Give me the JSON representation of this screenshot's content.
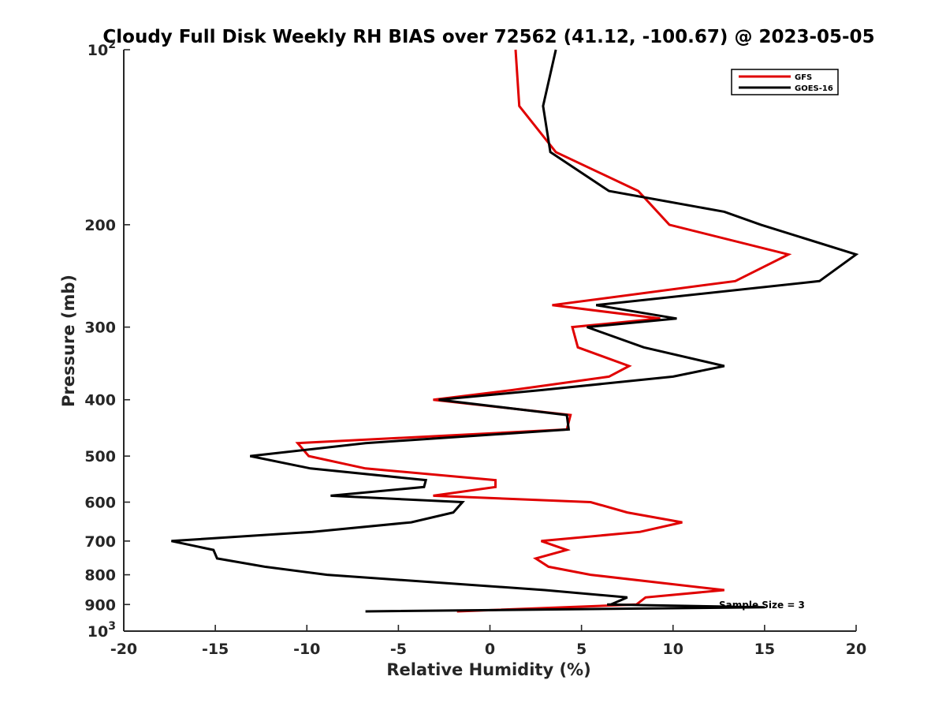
{
  "chart_data": {
    "type": "line",
    "title": "Cloudy Full Disk Weekly RH BIAS over 72562 (41.12, -100.67) @ 2023-05-05",
    "xlabel": "Relative Humidity (%)",
    "ylabel": "Pressure (mb)",
    "xlim": [
      -20,
      20
    ],
    "ylim": [
      100,
      1000
    ],
    "y_scale": "log",
    "y_reversed": true,
    "grid": false,
    "legend_position": "top-right",
    "x_ticks": [
      "-20",
      "-15",
      "-10",
      "-5",
      "0",
      "5",
      "10",
      "15",
      "20"
    ],
    "y_ticks": [
      {
        "value": 100,
        "base": "10",
        "exp": "2"
      },
      {
        "value": 200,
        "label": "200"
      },
      {
        "value": 300,
        "label": "300"
      },
      {
        "value": 400,
        "label": "400"
      },
      {
        "value": 500,
        "label": "500"
      },
      {
        "value": 600,
        "label": "600"
      },
      {
        "value": 700,
        "label": "700"
      },
      {
        "value": 800,
        "label": "800"
      },
      {
        "value": 900,
        "label": "900"
      },
      {
        "value": 1000,
        "base": "10",
        "exp": "3"
      }
    ],
    "series": [
      {
        "name": "GFS",
        "color": "#e00000",
        "points": [
          [
            1.4,
            100
          ],
          [
            1.6,
            125
          ],
          [
            3.6,
            150
          ],
          [
            8.1,
            175
          ],
          [
            9.8,
            200
          ],
          [
            16.3,
            225
          ],
          [
            13.4,
            250
          ],
          [
            3.4,
            275
          ],
          [
            9.3,
            290
          ],
          [
            4.5,
            300
          ],
          [
            4.8,
            325
          ],
          [
            7.6,
            350
          ],
          [
            6.5,
            365
          ],
          [
            1.2,
            385
          ],
          [
            -3.1,
            400
          ],
          [
            4.4,
            425
          ],
          [
            4.2,
            450
          ],
          [
            -10.5,
            475
          ],
          [
            -9.9,
            500
          ],
          [
            -6.8,
            525
          ],
          [
            0.3,
            550
          ],
          [
            0.3,
            565
          ],
          [
            -3.1,
            585
          ],
          [
            5.5,
            600
          ],
          [
            7.5,
            625
          ],
          [
            10.5,
            650
          ],
          [
            8.2,
            675
          ],
          [
            2.8,
            700
          ],
          [
            4.2,
            725
          ],
          [
            2.5,
            750
          ],
          [
            3.2,
            775
          ],
          [
            5.5,
            800
          ],
          [
            12.8,
            850
          ],
          [
            8.5,
            875
          ],
          [
            8.0,
            900
          ],
          [
            -1.8,
            925
          ]
        ]
      },
      {
        "name": "GOES-16",
        "color": "#000000",
        "points": [
          [
            3.6,
            100
          ],
          [
            2.9,
            125
          ],
          [
            3.3,
            150
          ],
          [
            6.5,
            175
          ],
          [
            12.8,
            190
          ],
          [
            14.8,
            200
          ],
          [
            20.0,
            225
          ],
          [
            18.0,
            250
          ],
          [
            5.8,
            275
          ],
          [
            10.2,
            290
          ],
          [
            5.3,
            300
          ],
          [
            8.4,
            325
          ],
          [
            12.8,
            350
          ],
          [
            10.0,
            365
          ],
          [
            2.8,
            385
          ],
          [
            -2.8,
            400
          ],
          [
            4.2,
            425
          ],
          [
            4.3,
            450
          ],
          [
            -6.8,
            475
          ],
          [
            -13.1,
            500
          ],
          [
            -9.8,
            525
          ],
          [
            -3.5,
            550
          ],
          [
            -3.6,
            565
          ],
          [
            -8.7,
            585
          ],
          [
            -1.5,
            600
          ],
          [
            -2.0,
            625
          ],
          [
            -4.3,
            650
          ],
          [
            -9.7,
            675
          ],
          [
            -17.4,
            700
          ],
          [
            -15.1,
            725
          ],
          [
            -14.9,
            750
          ],
          [
            -12.3,
            775
          ],
          [
            -8.9,
            800
          ],
          [
            3.0,
            850
          ],
          [
            7.5,
            875
          ],
          [
            6.6,
            900
          ],
          [
            6.4,
            900
          ],
          [
            15.0,
            910
          ],
          [
            -6.8,
            925
          ]
        ]
      }
    ],
    "annotation": "Sample Size = 3"
  }
}
